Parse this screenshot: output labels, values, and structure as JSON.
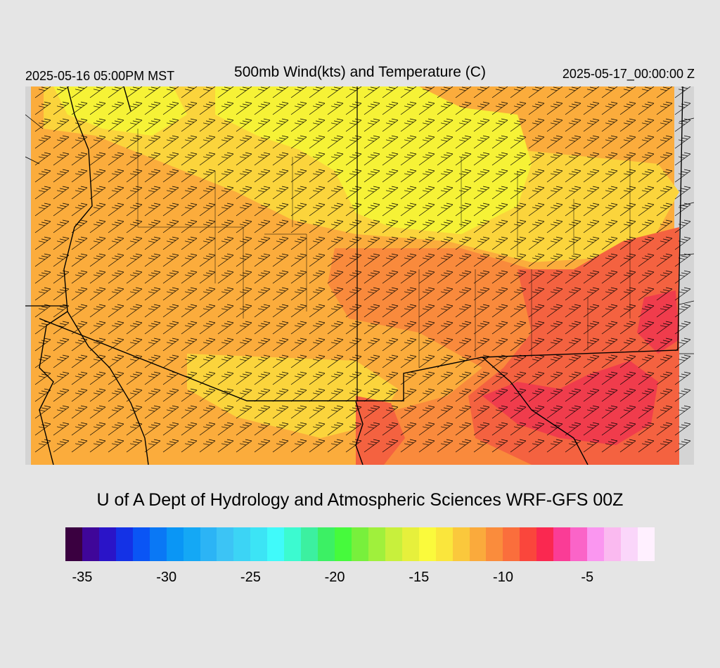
{
  "header": {
    "valid_local": "2025-05-16 05:00PM MST",
    "title": "500mb Wind(kts) and Temperature (C)",
    "valid_utc": "2025-05-17_00:00:00 Z"
  },
  "footer": {
    "credit": "U of A Dept of Hydrology and Atmospheric Sciences WRF-GFS 00Z"
  },
  "colorbar": {
    "colors": [
      "#3a0040",
      "#3f0699",
      "#2a14c8",
      "#1432e6",
      "#0a55f5",
      "#0a78f5",
      "#0a96f5",
      "#14a8f5",
      "#2cb4f5",
      "#3cc4f5",
      "#3cd4f5",
      "#3ce4f5",
      "#40fafa",
      "#3cfad0",
      "#3cf0a0",
      "#3cf064",
      "#46fa3c",
      "#78f03c",
      "#a0f03c",
      "#c8f03c",
      "#e6f03c",
      "#fafa3c",
      "#fae63c",
      "#fac83c",
      "#faaa3c",
      "#fa8c3c",
      "#fa6e3c",
      "#fa463c",
      "#fa2850",
      "#fa3c96",
      "#fa64c8",
      "#fa96f0",
      "#fabaf0",
      "#fad6fa",
      "#fff0ff"
    ],
    "ticks": [
      "-35",
      "-30",
      "-25",
      "-20",
      "-15",
      "-10",
      "-5"
    ],
    "tick_values": [
      -35,
      -30,
      -25,
      -20,
      -15,
      -10,
      -5
    ],
    "min": -36,
    "max": -1
  },
  "map": {
    "field_colors": {
      "out_of_domain": "#d4d4d4",
      "cool": "#f6f236",
      "mid": "#fbd43c",
      "warm": "#fbac3c",
      "warmer": "#f98a3c",
      "hot": "#f46240",
      "hottest": "#f03c4c"
    },
    "line_color": "#000000"
  }
}
